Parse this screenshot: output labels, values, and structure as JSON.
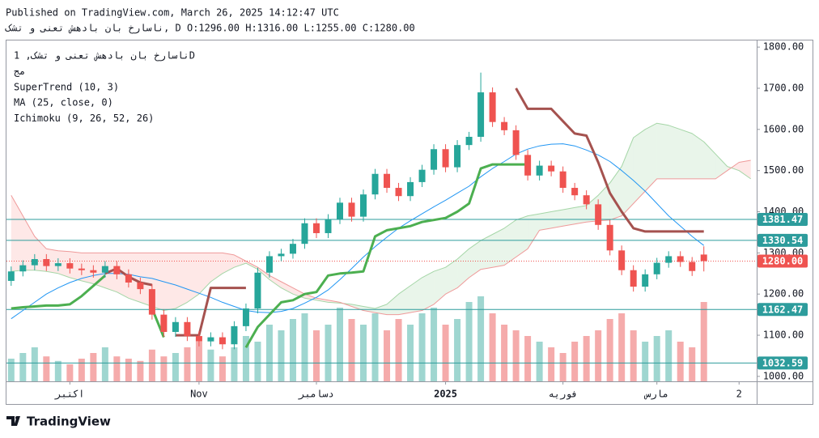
{
  "header": {
    "published": "Published on TradingView.com, March 26, 2025 14:12:47 UTC",
    "symbol_line": "ناسارخ بان بادهش تعنى و تشک, D O:1296.00 H:1316.00 L:1255.00 C:1280.00",
    "brand": "TradingView"
  },
  "chart_data": {
    "type": "candlestick",
    "legend": {
      "title": "ناسارخ بان بادهش تعنى و تشک, 1D",
      "subtitle": "مج"
    },
    "open": [
      1232,
      1255,
      1270,
      1285,
      1268,
      1275,
      1262,
      1258,
      1252,
      1268,
      1248,
      1228,
      1212,
      1150,
      1108,
      1132,
      1098,
      1085,
      1095,
      1078,
      1122,
      1165,
      1252,
      1292,
      1298,
      1322,
      1372,
      1348,
      1382,
      1422,
      1388,
      1442,
      1492,
      1458,
      1438,
      1472,
      1502,
      1552,
      1508,
      1562,
      1582,
      1690,
      1618,
      1598,
      1538,
      1488,
      1512,
      1498,
      1458,
      1440,
      1418,
      1368,
      1306,
      1258,
      1218,
      1248,
      1276,
      1292,
      1278,
      1296
    ],
    "high": [
      1267,
      1282,
      1297,
      1297,
      1287,
      1287,
      1274,
      1270,
      1280,
      1280,
      1260,
      1240,
      1224,
      1162,
      1144,
      1144,
      1110,
      1107,
      1107,
      1134,
      1177,
      1264,
      1304,
      1310,
      1334,
      1384,
      1384,
      1394,
      1434,
      1434,
      1454,
      1504,
      1504,
      1470,
      1484,
      1514,
      1564,
      1564,
      1574,
      1594,
      1738,
      1702,
      1630,
      1610,
      1550,
      1524,
      1524,
      1510,
      1470,
      1452,
      1430,
      1380,
      1318,
      1270,
      1260,
      1288,
      1304,
      1304,
      1290,
      1316
    ],
    "low": [
      1220,
      1243,
      1258,
      1256,
      1256,
      1250,
      1246,
      1240,
      1240,
      1236,
      1216,
      1200,
      1138,
      1096,
      1096,
      1086,
      1073,
      1073,
      1066,
      1066,
      1110,
      1153,
      1240,
      1280,
      1286,
      1310,
      1336,
      1336,
      1370,
      1376,
      1376,
      1430,
      1446,
      1426,
      1426,
      1460,
      1490,
      1496,
      1496,
      1550,
      1570,
      1606,
      1586,
      1526,
      1476,
      1476,
      1486,
      1446,
      1428,
      1406,
      1356,
      1294,
      1246,
      1206,
      1206,
      1236,
      1264,
      1266,
      1244,
      1255
    ],
    "close": [
      1255,
      1270,
      1285,
      1268,
      1275,
      1262,
      1258,
      1252,
      1268,
      1248,
      1228,
      1212,
      1150,
      1108,
      1132,
      1098,
      1085,
      1095,
      1078,
      1122,
      1165,
      1252,
      1292,
      1298,
      1322,
      1372,
      1348,
      1382,
      1422,
      1388,
      1442,
      1492,
      1458,
      1438,
      1472,
      1502,
      1552,
      1508,
      1562,
      1582,
      1690,
      1618,
      1598,
      1538,
      1488,
      1512,
      1498,
      1458,
      1440,
      1418,
      1368,
      1306,
      1258,
      1218,
      1248,
      1276,
      1292,
      1278,
      1256,
      1280
    ],
    "volume": [
      20,
      25,
      30,
      22,
      18,
      15,
      20,
      25,
      30,
      22,
      20,
      18,
      28,
      22,
      25,
      30,
      35,
      28,
      22,
      30,
      40,
      35,
      50,
      45,
      55,
      60,
      45,
      50,
      65,
      55,
      50,
      60,
      45,
      55,
      50,
      60,
      65,
      50,
      55,
      70,
      75,
      60,
      50,
      45,
      40,
      35,
      30,
      25,
      35,
      40,
      45,
      55,
      60,
      45,
      35,
      40,
      45,
      35,
      30,
      70
    ],
    "colors": {
      "up": "#26a69a",
      "down": "#ef5350",
      "volume_up": "#9fd6d0",
      "volume_down": "#f5abab",
      "level": "#2d9c9c",
      "last": "#ef5350"
    },
    "supertrend": {
      "name": "SuperTrend (10, 3)",
      "up_color": "#4caf50",
      "down_color": "#a5524f",
      "up": [
        1165,
        1168,
        1170,
        1172,
        1172,
        1175,
        1195,
        1220,
        1245,
        null,
        null,
        null,
        1165,
        1095,
        null,
        null,
        null,
        null,
        null,
        null,
        1070,
        1120,
        1150,
        1180,
        1185,
        1200,
        1205,
        1245,
        1250,
        1252,
        1255,
        1340,
        1355,
        1360,
        1365,
        1375,
        1380,
        1385,
        1400,
        1420,
        1505,
        1515,
        1515,
        1515,
        1515,
        null,
        null,
        null,
        null,
        null,
        null,
        null,
        null,
        null,
        null,
        null,
        null,
        null,
        null,
        null
      ],
      "down": [
        null,
        null,
        null,
        null,
        null,
        null,
        null,
        null,
        1250,
        1262,
        1242,
        1228,
        1222,
        null,
        1100,
        1100,
        1100,
        1215,
        1215,
        1215,
        1215,
        null,
        null,
        null,
        null,
        null,
        null,
        null,
        null,
        null,
        null,
        null,
        null,
        null,
        null,
        null,
        null,
        null,
        null,
        null,
        null,
        null,
        null,
        1700,
        1650,
        1650,
        1650,
        1620,
        1590,
        1585,
        1520,
        1445,
        1400,
        1360,
        1352,
        1352,
        1352,
        1352,
        1352,
        1352
      ]
    },
    "ma": {
      "name": "MA (25, close, 0)",
      "color": "#2196f3",
      "values": [
        1140,
        1160,
        1180,
        1200,
        1215,
        1228,
        1238,
        1245,
        1250,
        1250,
        1248,
        1242,
        1238,
        1230,
        1222,
        1212,
        1202,
        1192,
        1180,
        1170,
        1160,
        1156,
        1155,
        1158,
        1165,
        1178,
        1192,
        1210,
        1235,
        1262,
        1290,
        1315,
        1338,
        1360,
        1378,
        1395,
        1412,
        1428,
        1445,
        1462,
        1485,
        1505,
        1522,
        1540,
        1552,
        1560,
        1564,
        1565,
        1560,
        1550,
        1538,
        1522,
        1500,
        1476,
        1450,
        1420,
        1390,
        1365,
        1340,
        1318
      ]
    },
    "ichimoku": {
      "name": "Ichimoku (9, 26, 52, 26)",
      "a_color": "#a5d6a7",
      "b_color": "#ef9a9a",
      "bull_fill": "rgba(76,175,80,0.12)",
      "bear_fill": "rgba(244,67,54,0.12)",
      "span_a": [
        1255,
        1258,
        1258,
        1255,
        1250,
        1240,
        1232,
        1225,
        1215,
        1205,
        1190,
        1180,
        1170,
        1160,
        1165,
        1180,
        1200,
        1230,
        1250,
        1265,
        1275,
        1260,
        1235,
        1215,
        1200,
        1190,
        1185,
        1180,
        1178,
        1175,
        1170,
        1165,
        1175,
        1200,
        1220,
        1240,
        1255,
        1265,
        1285,
        1310,
        1330,
        1345,
        1360,
        1380,
        1390,
        1395,
        1400,
        1405,
        1410,
        1415,
        1440,
        1470,
        1510,
        1580,
        1600,
        1615,
        1610,
        1600,
        1590,
        1570,
        1540,
        1510,
        1500,
        1480
      ],
      "span_b": [
        1440,
        1390,
        1340,
        1310,
        1305,
        1303,
        1300,
        1300,
        1300,
        1300,
        1300,
        1300,
        1300,
        1300,
        1300,
        1300,
        1300,
        1300,
        1300,
        1295,
        1280,
        1265,
        1245,
        1230,
        1215,
        1200,
        1190,
        1185,
        1180,
        1170,
        1160,
        1155,
        1150,
        1150,
        1155,
        1160,
        1175,
        1200,
        1215,
        1240,
        1260,
        1265,
        1270,
        1290,
        1310,
        1355,
        1360,
        1365,
        1370,
        1375,
        1378,
        1380,
        1390,
        1420,
        1450,
        1480,
        1480,
        1480,
        1480,
        1480,
        1480,
        1500,
        1520,
        1525
      ]
    },
    "levels": [
      1381.47,
      1330.54,
      1162.47,
      1032.59
    ],
    "last_price": {
      "value": 1280,
      "label": "1280.00"
    },
    "xlim": [
      -0.4,
      63.5
    ],
    "xticks": [
      {
        "value": 5,
        "label": "اکتبر"
      },
      {
        "value": 16,
        "label": "Nov"
      },
      {
        "value": 26,
        "label": "دسامبر"
      },
      {
        "value": 37,
        "label": "2025"
      },
      {
        "value": 47,
        "label": "فوریه"
      },
      {
        "value": 55,
        "label": "مارس"
      },
      {
        "value": 62,
        "label": "2"
      }
    ],
    "ylim": [
      988,
      1818
    ],
    "yticks": [
      {
        "value": 1000,
        "label": "1000.00"
      },
      {
        "value": 1100,
        "label": "1100.00"
      },
      {
        "value": 1200,
        "label": "1200.00"
      },
      {
        "value": 1300,
        "label": "1300.00"
      },
      {
        "value": 1400,
        "label": "1400.00"
      },
      {
        "value": 1500,
        "label": "1500.00"
      },
      {
        "value": 1600,
        "label": "1600.00"
      },
      {
        "value": 1700,
        "label": "1700.00"
      },
      {
        "value": 1800,
        "label": "1800.00"
      }
    ],
    "grid": false
  }
}
